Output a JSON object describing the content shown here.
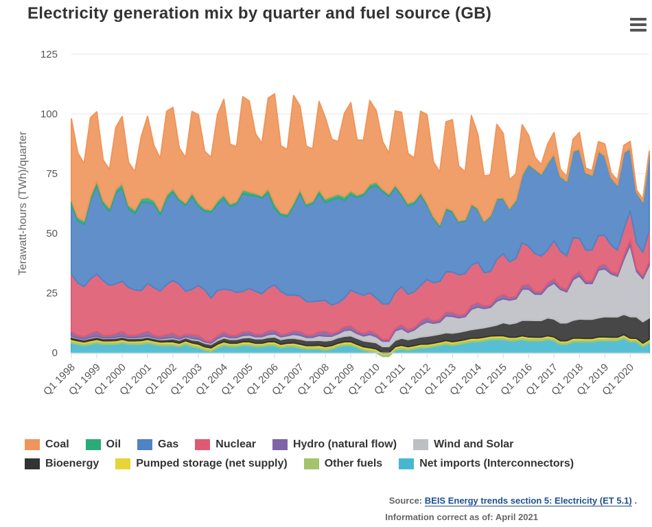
{
  "title": "Electricity generation mix by quarter and fuel source (GB)",
  "menu_icon": "hamburger-menu-icon",
  "source": {
    "prefix": "Source:",
    "link_text": "BEIS Energy trends section 5: Electricity (ET 5.1)",
    "suffix": "."
  },
  "info": "Information correct as of: April 2021",
  "chart_data": {
    "type": "area",
    "stacked": true,
    "title": "Electricity generation mix by quarter and fuel source (GB)",
    "ylabel": "Terawatt-hours (TWh)/quarter",
    "xlabel": "",
    "ylim": [
      0,
      125
    ],
    "yticks": [
      0,
      25,
      50,
      75,
      100,
      125
    ],
    "grid": true,
    "legend_position": "bottom",
    "x_tick_labels": [
      "Q1 1998",
      "Q1 1999",
      "Q1 2000",
      "Q1 2001",
      "Q1 2002",
      "Q1 2003",
      "Q1 2004",
      "Q1 2005",
      "Q1 2006",
      "Q1 2007",
      "Q1 2008",
      "Q1 2009",
      "Q1 2010",
      "Q1 2011",
      "Q1 2012",
      "Q1 2013",
      "Q1 2014",
      "Q1 2015",
      "Q1 2016",
      "Q1 2017",
      "Q1 2018",
      "Q1 2019",
      "Q1 2020"
    ],
    "years": [
      1998,
      1999,
      2000,
      2001,
      2002,
      2003,
      2004,
      2005,
      2006,
      2007,
      2008,
      2009,
      2010,
      2011,
      2012,
      2013,
      2014,
      2015,
      2016,
      2017,
      2018,
      2019,
      2020
    ],
    "quarters_per_year": 4,
    "series_order_bottom_to_top": [
      "Net imports (Interconnectors)",
      "Other fuels",
      "Pumped storage (net supply)",
      "Bioenergy",
      "Wind and Solar",
      "Hydro (natural flow)",
      "Nuclear",
      "Gas",
      "Oil",
      "Coal"
    ],
    "series": [
      {
        "name": "Coal",
        "color": "#f0955a",
        "legend_row": 0,
        "values": [
          34,
          27,
          24,
          33,
          29,
          17,
          16,
          26,
          28,
          18,
          16,
          26,
          34,
          23,
          22,
          35,
          34,
          21,
          19,
          34,
          37,
          24,
          22,
          36,
          40,
          25,
          23,
          39,
          38,
          25,
          22,
          38,
          46,
          28,
          27,
          45,
          35,
          24,
          22,
          37,
          34,
          24,
          22,
          35,
          37,
          23,
          22,
          35,
          30,
          20,
          17,
          31,
          34,
          21,
          18,
          34,
          37,
          23,
          22,
          36,
          38,
          23,
          20,
          37,
          31,
          19,
          17,
          31,
          27,
          12,
          11,
          21,
          12,
          5,
          4,
          8,
          9,
          3,
          2,
          5,
          7,
          2,
          2,
          4,
          5,
          2,
          2,
          3,
          3,
          1,
          1,
          1
        ]
      },
      {
        "name": "Oil",
        "color": "#2aab78",
        "legend_row": 0,
        "values": [
          2,
          1.5,
          1.5,
          1.5,
          2,
          1.5,
          1.5,
          1.5,
          2,
          1.5,
          1.5,
          1.5,
          2,
          1.5,
          1.5,
          1.5,
          1.5,
          1,
          1,
          1.5,
          1.5,
          1,
          1,
          1.5,
          1.5,
          1,
          1,
          1.5,
          1.5,
          1,
          1,
          1.5,
          2,
          1,
          1,
          1.5,
          1.5,
          1,
          1,
          1.5,
          1.5,
          1.5,
          1.5,
          1.5,
          1.5,
          1,
          1,
          1.5,
          1.5,
          1,
          1,
          1,
          1,
          1,
          1,
          1,
          1,
          0.8,
          0.8,
          0.8,
          0.8,
          0.6,
          0.6,
          0.6,
          0.6,
          0.5,
          0.5,
          0.5,
          0.5,
          0.4,
          0.4,
          0.4,
          0.4,
          0.3,
          0.3,
          0.3,
          0.3,
          0.3,
          0.3,
          0.3,
          0.3,
          0.3,
          0.3,
          0.3,
          0.3,
          0.2,
          0.2,
          0.2,
          0.2,
          0.2,
          0.2,
          0.2
        ]
      },
      {
        "name": "Gas",
        "color": "#5083c4",
        "legend_row": 0,
        "values": [
          29,
          26,
          26,
          33,
          37,
          32,
          31,
          38,
          39,
          33,
          32,
          37,
          34,
          35,
          32,
          36,
          37,
          35,
          36,
          39,
          33,
          33,
          36,
          36,
          38,
          35,
          37,
          41,
          39,
          40,
          40,
          40,
          32,
          32,
          33,
          37,
          43,
          40,
          41,
          45,
          41,
          44,
          44,
          41,
          40,
          40,
          42,
          44,
          47,
          47,
          45,
          44,
          38,
          37,
          37,
          38,
          31,
          27,
          23,
          26,
          25,
          22,
          22,
          25,
          22,
          21,
          23,
          25,
          23,
          22,
          24,
          28,
          34,
          35,
          34,
          36,
          36,
          31,
          31,
          36,
          37,
          32,
          31,
          35,
          33,
          28,
          27,
          32,
          26,
          21,
          21,
          32
        ]
      },
      {
        "name": "Nuclear",
        "color": "#df5a71",
        "legend_row": 0,
        "values": [
          24,
          22,
          21,
          23,
          24,
          23,
          21,
          21,
          21,
          20,
          19,
          18,
          20,
          20,
          19,
          21,
          22,
          22,
          18,
          19,
          21,
          21,
          18,
          19,
          18,
          19,
          18,
          17,
          18,
          18,
          17,
          18,
          19,
          18,
          16,
          15,
          15,
          14,
          14,
          13,
          13,
          12,
          12,
          12,
          15,
          16,
          16,
          16,
          15,
          15,
          15,
          15,
          16,
          15,
          15,
          15,
          16,
          16,
          16,
          17,
          17,
          17,
          17,
          17,
          17,
          14,
          14,
          16,
          17,
          15,
          16,
          18,
          16,
          16,
          15,
          14,
          16,
          15,
          14,
          16,
          14,
          13,
          13,
          13,
          12,
          11,
          10,
          11,
          12,
          11,
          10,
          13
        ]
      },
      {
        "name": "Hydro (natural flow)",
        "color": "#7f63a6",
        "legend_row": 0,
        "values": [
          2,
          1,
          1,
          1.5,
          2,
          1,
          1,
          1.5,
          2,
          1,
          1,
          1.5,
          2,
          1,
          1,
          1.5,
          1.8,
          1,
          1,
          1.5,
          1.5,
          0.8,
          0.8,
          1.2,
          1.6,
          1,
          1,
          1.5,
          1.5,
          1,
          1,
          1.5,
          1.5,
          1,
          1,
          1.5,
          1.5,
          1,
          1,
          1.5,
          2,
          1,
          1,
          1.5,
          1.7,
          1,
          1,
          1.5,
          1.2,
          0.7,
          0.7,
          1,
          1.6,
          1,
          1,
          1.5,
          1.8,
          1,
          1,
          1.5,
          1.6,
          1,
          1,
          1.5,
          1.8,
          1,
          1,
          1.5,
          1.8,
          1,
          1,
          1.5,
          2,
          1,
          1,
          1.5,
          1.8,
          1,
          1,
          1.5,
          1.8,
          1,
          1,
          1.5,
          2,
          1,
          1,
          1.5,
          2.2,
          1,
          1,
          1.5
        ]
      },
      {
        "name": "Wind and Solar",
        "color": "#bcbfc4",
        "legend_row": 0,
        "values": [
          0.3,
          0.2,
          0.2,
          0.3,
          0.3,
          0.2,
          0.2,
          0.3,
          0.3,
          0.3,
          0.3,
          0.4,
          0.4,
          0.3,
          0.3,
          0.5,
          0.5,
          0.4,
          0.4,
          0.6,
          0.6,
          0.5,
          0.5,
          0.8,
          0.8,
          0.7,
          0.7,
          1,
          1,
          0.9,
          0.9,
          1.2,
          1.3,
          1.1,
          1.1,
          1.6,
          1.6,
          1.3,
          1.3,
          2,
          2,
          1.6,
          1.6,
          2.4,
          2.4,
          2,
          2,
          3,
          2.5,
          2.2,
          2.2,
          4,
          4,
          3,
          3.5,
          5,
          6,
          5,
          5,
          7,
          7,
          6,
          6,
          8.5,
          9,
          8,
          8,
          10,
          10,
          10,
          10,
          13,
          13,
          11,
          11,
          13,
          15,
          14,
          13,
          17,
          18,
          15,
          15,
          20,
          20,
          18,
          17,
          23,
          30,
          19,
          18,
          22
        ]
      },
      {
        "name": "Bioenergy",
        "color": "#333333",
        "legend_row": 1,
        "values": [
          1,
          1,
          1,
          1,
          1,
          1,
          1,
          1,
          1,
          1,
          1,
          1,
          1,
          1,
          1,
          1,
          1.3,
          1.3,
          1.3,
          1.3,
          1.5,
          1.5,
          1.5,
          1.5,
          1.6,
          1.6,
          1.6,
          1.6,
          1.8,
          1.8,
          1.8,
          1.8,
          2,
          2,
          2,
          2,
          2.1,
          2.1,
          2.1,
          2.1,
          2.3,
          2.3,
          2.3,
          2.3,
          2.5,
          2.5,
          2.5,
          2.5,
          2.6,
          2.6,
          2.6,
          2.6,
          3,
          3,
          3,
          3,
          3.3,
          3.3,
          3.3,
          3.3,
          3.6,
          3.6,
          3.6,
          3.6,
          4,
          4,
          4,
          4.5,
          5.5,
          5.5,
          6,
          6.5,
          7,
          7,
          7,
          7.5,
          7.5,
          7.5,
          7.5,
          7.5,
          8,
          8,
          8,
          8,
          8.5,
          8.5,
          8.5,
          8.5,
          9,
          9,
          9,
          9
        ]
      },
      {
        "name": "Pumped storage (net supply)",
        "color": "#e6d534",
        "legend_row": 1,
        "values": [
          0.6,
          0.5,
          0.5,
          0.6,
          0.6,
          0.5,
          0.5,
          0.6,
          0.6,
          0.5,
          0.5,
          0.6,
          0.6,
          0.5,
          0.5,
          0.6,
          0.6,
          0.5,
          0.5,
          0.6,
          0.6,
          0.5,
          0.5,
          0.6,
          0.6,
          0.5,
          0.5,
          0.6,
          0.6,
          0.5,
          0.5,
          0.6,
          0.6,
          0.5,
          0.5,
          0.6,
          0.6,
          0.5,
          0.5,
          0.6,
          0.6,
          0.5,
          0.5,
          0.6,
          0.6,
          0.5,
          0.5,
          0.6,
          0.6,
          0.5,
          0.5,
          0.6,
          0.6,
          0.5,
          0.5,
          0.6,
          0.6,
          0.5,
          0.5,
          0.6,
          0.6,
          0.5,
          0.5,
          0.6,
          0.6,
          0.5,
          0.5,
          0.6,
          0.6,
          0.5,
          0.5,
          0.6,
          0.6,
          0.5,
          0.5,
          0.6,
          0.6,
          0.5,
          0.5,
          0.6,
          0.6,
          0.5,
          0.5,
          0.6,
          0.6,
          0.5,
          0.5,
          0.6,
          0.6,
          0.5,
          0.5,
          0.6
        ]
      },
      {
        "name": "Other fuels",
        "color": "#a3c46a",
        "legend_row": 1,
        "values": [
          1,
          1,
          1,
          1,
          1,
          1,
          1,
          1,
          1,
          1,
          1,
          1,
          1,
          1,
          1,
          1,
          1,
          1,
          1,
          1,
          1,
          1,
          1,
          1,
          1,
          1,
          1,
          1,
          1,
          1,
          1,
          1,
          1,
          1,
          1,
          1,
          1,
          1,
          1,
          1,
          1,
          1,
          1,
          1,
          1,
          1,
          1,
          1,
          1,
          1,
          1,
          1,
          1,
          1,
          1,
          1,
          1,
          1,
          1,
          1,
          1,
          1,
          1,
          1,
          1,
          1,
          1,
          1,
          1,
          1,
          1,
          1,
          1,
          1,
          1,
          1,
          1,
          1,
          1,
          1,
          1,
          1,
          1,
          1,
          1,
          1,
          1,
          1,
          1,
          1,
          1,
          1
        ]
      },
      {
        "name": "Net imports (Interconnectors)",
        "color": "#45b8cf",
        "legend_row": 1,
        "values": [
          4,
          3.5,
          3,
          3.5,
          4,
          3.5,
          3.5,
          3.5,
          4,
          3.5,
          3.5,
          3.5,
          4,
          3.5,
          3,
          3,
          3,
          2.5,
          3.5,
          2.5,
          2,
          1,
          0.5,
          2,
          3,
          2.5,
          2.5,
          3,
          3,
          2.5,
          2.5,
          3,
          3,
          2,
          2.5,
          2.5,
          2,
          1.5,
          1.5,
          1.5,
          1,
          1.5,
          2.5,
          3,
          3,
          2,
          1,
          0.5,
          0,
          -1.5,
          -1.5,
          1,
          1.5,
          1,
          1.5,
          2,
          2,
          2.5,
          3,
          3.5,
          3,
          3.5,
          4,
          4.5,
          4.5,
          5,
          5.5,
          5.5,
          5.5,
          5,
          5,
          5.5,
          5,
          5,
          5,
          5.5,
          5,
          3.5,
          3.5,
          4.5,
          4.5,
          4.5,
          4.5,
          5,
          5,
          5,
          5,
          6,
          4.5,
          4.5,
          2.5,
          4
        ]
      }
    ]
  }
}
